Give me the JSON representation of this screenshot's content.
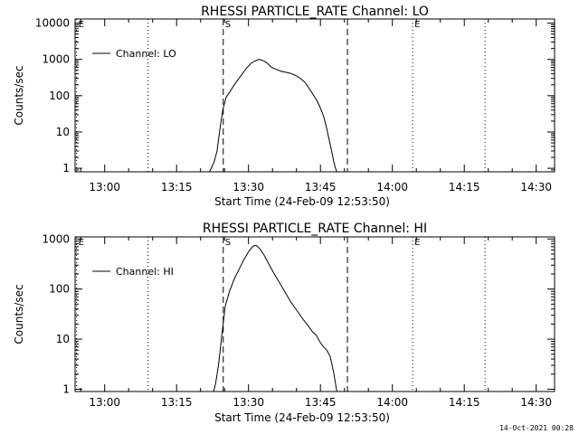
{
  "footer": "14-Oct-2021 00:28",
  "chart_data": [
    {
      "type": "line",
      "title": "RHESSI PARTICLE_RATE Channel: LO",
      "xlabel": "Start Time (24-Feb-09 12:53:50)",
      "ylabel": "Counts/sec",
      "yscale": "log",
      "ylim": [
        0.8,
        13000
      ],
      "xlim_min_after_start": [
        0,
        100
      ],
      "xticks": [
        "13:00",
        "13:15",
        "13:30",
        "13:45",
        "14:00",
        "14:15",
        "14:30"
      ],
      "xtick_min": [
        6.17,
        21.17,
        36.17,
        51.17,
        66.17,
        81.17,
        96.17
      ],
      "yticks": [
        1,
        10,
        100,
        1000,
        10000
      ],
      "ytick_labels": [
        "1",
        "10",
        "100",
        "1000",
        "10000"
      ],
      "legend": {
        "label": "Channel: LO",
        "position": "top-left"
      },
      "markers": [
        {
          "label": "E",
          "x_min": 0.3,
          "style": "dotted"
        },
        {
          "label": "",
          "x_min": 15.2,
          "style": "dotted"
        },
        {
          "label": "S",
          "x_min": 30.9,
          "style": "dashed"
        },
        {
          "label": "",
          "x_min": 56.8,
          "style": "dashed"
        },
        {
          "label": "E",
          "x_min": 70.4,
          "style": "dotted"
        },
        {
          "label": "",
          "x_min": 85.5,
          "style": "dotted"
        }
      ],
      "series": [
        {
          "name": "Channel: LO",
          "x": [
            28.0,
            28.4,
            29.0,
            29.6,
            30.2,
            30.8,
            31.5,
            32.3,
            33.1,
            34.0,
            35.0,
            35.8,
            36.6,
            37.3,
            37.9,
            38.4,
            39.0,
            39.6,
            40.2,
            41.0,
            42.0,
            43.0,
            44.0,
            45.0,
            46.0,
            47.0,
            48.0,
            48.8,
            49.6,
            50.4,
            51.1,
            51.8,
            52.4,
            53.0,
            53.5,
            53.9,
            54.3,
            54.6
          ],
          "y": [
            0.8,
            1.0,
            1.5,
            3,
            12,
            40,
            90,
            130,
            190,
            280,
            420,
            580,
            760,
            880,
            950,
            1000,
            950,
            870,
            760,
            600,
            530,
            470,
            440,
            410,
            360,
            300,
            230,
            160,
            110,
            75,
            48,
            28,
            14,
            6,
            3,
            1.6,
            1.0,
            0.8
          ]
        }
      ]
    },
    {
      "type": "line",
      "title": "RHESSI PARTICLE_RATE Channel: HI",
      "xlabel": "Start Time (24-Feb-09 12:53:50)",
      "ylabel": "Counts/sec",
      "yscale": "log",
      "ylim": [
        0.9,
        1100
      ],
      "xlim_min_after_start": [
        0,
        100
      ],
      "xticks": [
        "13:00",
        "13:15",
        "13:30",
        "13:45",
        "14:00",
        "14:15",
        "14:30"
      ],
      "xtick_min": [
        6.17,
        21.17,
        36.17,
        51.17,
        66.17,
        81.17,
        96.17
      ],
      "yticks": [
        1,
        10,
        100,
        1000
      ],
      "ytick_labels": [
        "1",
        "10",
        "100",
        "1000"
      ],
      "legend": {
        "label": "Channel: HI",
        "position": "top-left"
      },
      "markers": [
        {
          "label": "E",
          "x_min": 0.3,
          "style": "dotted"
        },
        {
          "label": "",
          "x_min": 15.2,
          "style": "dotted"
        },
        {
          "label": "S",
          "x_min": 30.9,
          "style": "dashed"
        },
        {
          "label": "",
          "x_min": 56.8,
          "style": "dashed"
        },
        {
          "label": "E",
          "x_min": 70.4,
          "style": "dotted"
        },
        {
          "label": "",
          "x_min": 85.5,
          "style": "dotted"
        }
      ],
      "series": [
        {
          "name": "Channel: HI",
          "x": [
            28.9,
            29.3,
            29.9,
            30.6,
            31.3,
            32.2,
            33.2,
            34.3,
            35.3,
            36.3,
            37.0,
            37.5,
            38.0,
            38.6,
            39.4,
            40.3,
            41.3,
            42.5,
            43.7,
            45.0,
            46.2,
            47.5,
            48.5,
            49.5,
            50.3,
            51.0,
            51.8,
            52.5,
            53.2,
            53.6,
            54.0,
            54.3,
            54.6
          ],
          "y": [
            0.9,
            1.3,
            3,
            12,
            45,
            90,
            160,
            260,
            400,
            580,
            700,
            750,
            720,
            620,
            480,
            330,
            220,
            140,
            90,
            55,
            38,
            25,
            19,
            14,
            12,
            9,
            7,
            6,
            4.5,
            3,
            2,
            1.3,
            0.9
          ]
        }
      ]
    }
  ]
}
